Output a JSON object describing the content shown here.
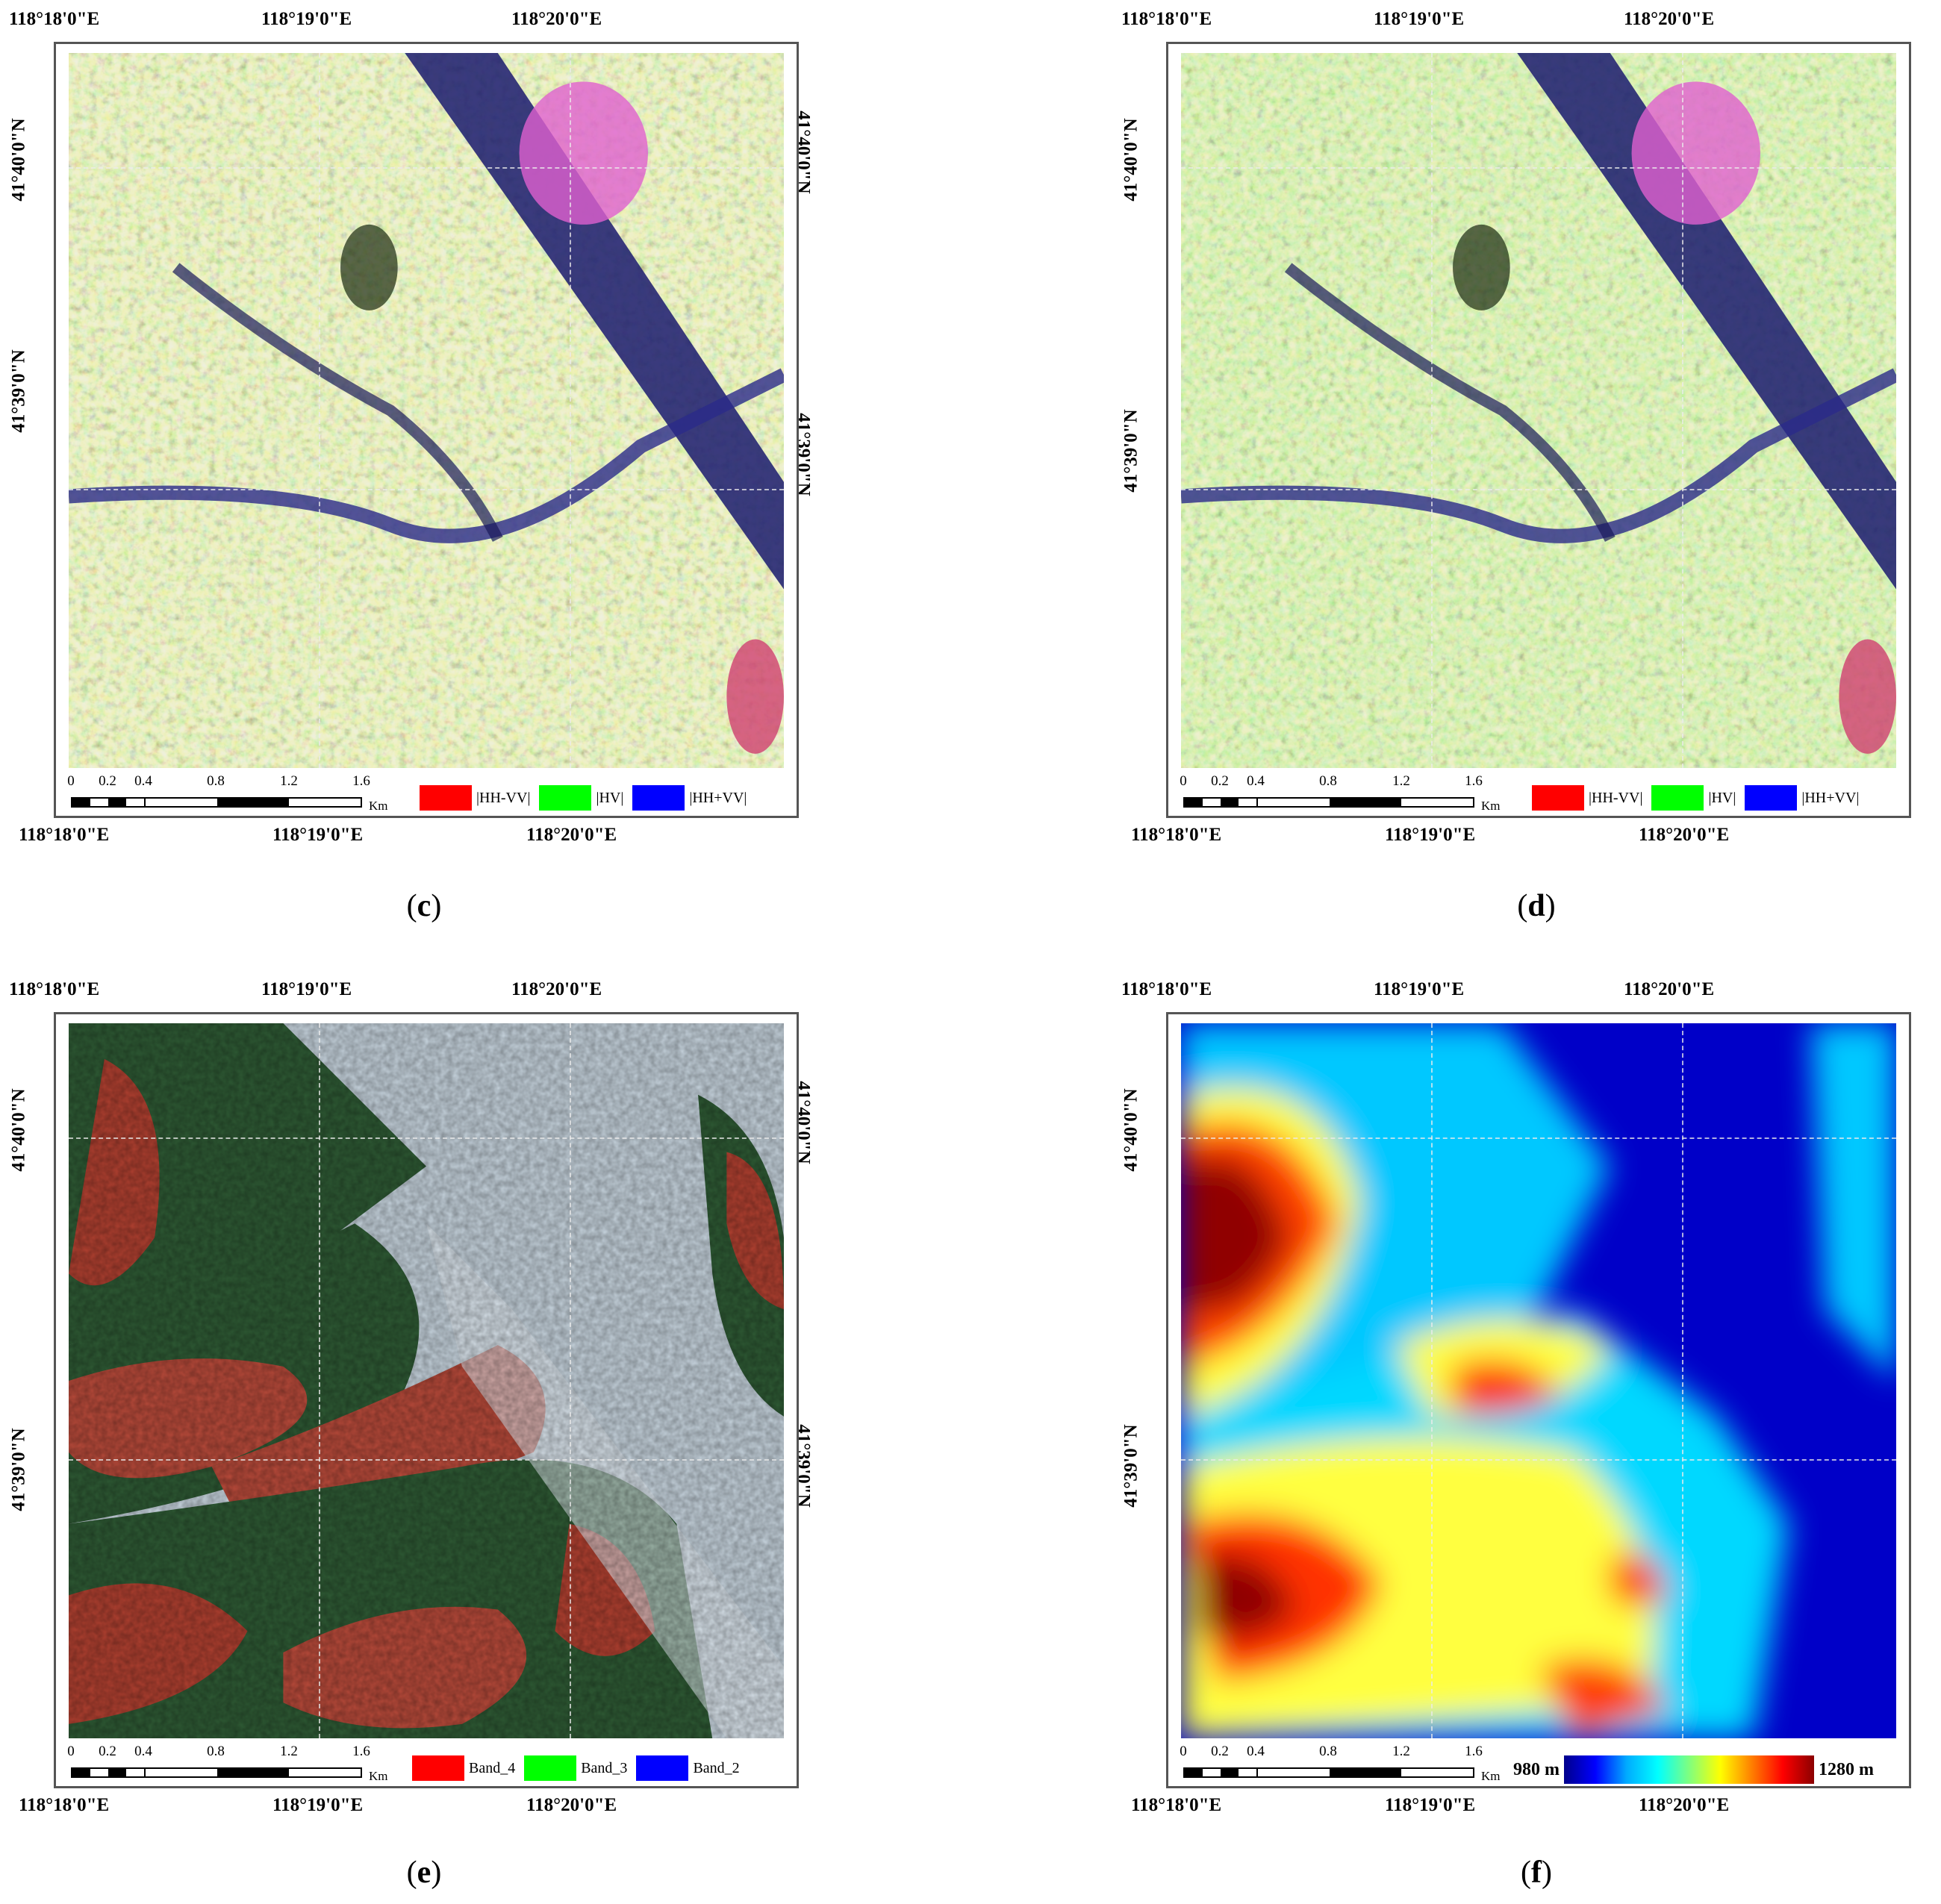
{
  "panels": [
    {
      "id": "c",
      "caption_letter": "c",
      "lon_labels": [
        "118°18'0\"E",
        "118°19'0\"E",
        "118°20'0\"E"
      ],
      "lat_labels": [
        "41°40'0\"N",
        "41°39'0\"N"
      ],
      "scale_ticks": [
        "0",
        "0.2",
        "0.4",
        "0.8",
        "1.2",
        "1.6"
      ],
      "scale_unit": "Km",
      "legend": [
        {
          "color": "#ff0000",
          "label": "|HH-VV|"
        },
        {
          "color": "#00ff00",
          "label": "|HV|"
        },
        {
          "color": "#0000ff",
          "label": "|HH+VV|"
        }
      ]
    },
    {
      "id": "d",
      "caption_letter": "d",
      "lon_labels": [
        "118°18'0\"E",
        "118°19'0\"E",
        "118°20'0\"E"
      ],
      "lat_labels": [
        "41°40'0\"N",
        "41°39'0\"N"
      ],
      "scale_ticks": [
        "0",
        "0.2",
        "0.4",
        "0.8",
        "1.2",
        "1.6"
      ],
      "scale_unit": "Km",
      "legend": [
        {
          "color": "#ff0000",
          "label": "|HH-VV|"
        },
        {
          "color": "#00ff00",
          "label": "|HV|"
        },
        {
          "color": "#0000ff",
          "label": "|HH+VV|"
        }
      ]
    },
    {
      "id": "e",
      "caption_letter": "e",
      "lon_labels": [
        "118°18'0\"E",
        "118°19'0\"E",
        "118°20'0\"E"
      ],
      "lat_labels": [
        "41°40'0\"N",
        "41°39'0\"N"
      ],
      "scale_ticks": [
        "0",
        "0.2",
        "0.4",
        "0.8",
        "1.2",
        "1.6"
      ],
      "scale_unit": "Km",
      "legend": [
        {
          "color": "#ff0000",
          "label": "Band_4"
        },
        {
          "color": "#00ff00",
          "label": "Band_3"
        },
        {
          "color": "#0000ff",
          "label": "Band_2"
        }
      ]
    },
    {
      "id": "f",
      "caption_letter": "f",
      "lon_labels": [
        "118°18'0\"E",
        "118°19'0\"E",
        "118°20'0\"E"
      ],
      "lat_labels": [
        "41°40'0\"N",
        "41°39'0\"N"
      ],
      "scale_ticks": [
        "0",
        "0.2",
        "0.4",
        "0.8",
        "1.2",
        "1.6"
      ],
      "scale_unit": "Km",
      "colorbar": {
        "min_label": "980 m",
        "max_label": "1280 m"
      }
    }
  ]
}
